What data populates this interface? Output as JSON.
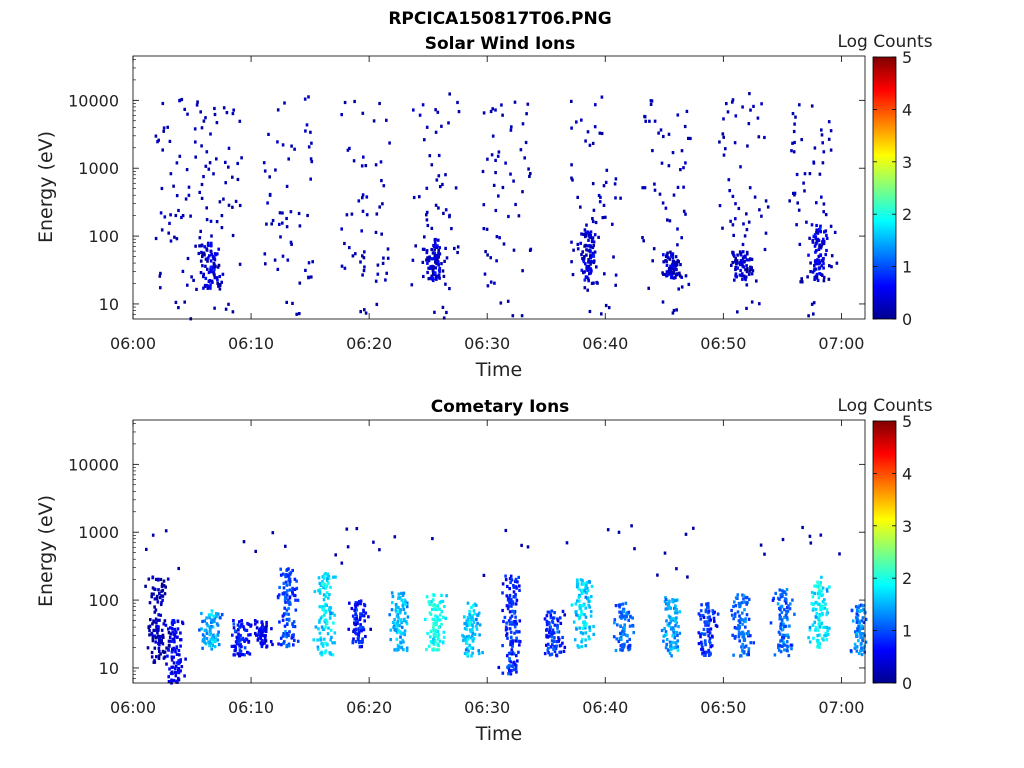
{
  "figure_title": "RPCICA150817T06.PNG",
  "colorbar": {
    "label": "Log Counts",
    "ticks": [
      "0",
      "1",
      "2",
      "3",
      "4",
      "5"
    ],
    "min": 0,
    "max": 5
  },
  "chart_data": [
    {
      "type": "heatmap",
      "title": "Solar Wind Ions",
      "xlabel": "Time",
      "ylabel": "Energy (eV)",
      "x_tick_labels": [
        "06:00",
        "06:10",
        "06:20",
        "06:30",
        "06:40",
        "06:50",
        "07:00"
      ],
      "y_tick_labels": [
        "10",
        "100",
        "1000",
        "10000"
      ],
      "y_scale": "log",
      "ylim": [
        6,
        45000
      ],
      "xlim_minutes": [
        0,
        62
      ],
      "value_label": "Log Counts",
      "sweep_start_minutes": [
        1.7,
        5.0,
        11.0,
        17.5,
        23.5,
        29.5,
        37.0,
        43.0,
        49.5,
        55.5
      ],
      "clusters": [
        {
          "t_minutes": 6.5,
          "e_min": 17,
          "e_max": 80,
          "log_counts": 0.5
        },
        {
          "t_minutes": 25.5,
          "e_min": 22,
          "e_max": 90,
          "log_counts": 0.5
        },
        {
          "t_minutes": 38.5,
          "e_min": 20,
          "e_max": 120,
          "log_counts": 0.5
        },
        {
          "t_minutes": 45.5,
          "e_min": 22,
          "e_max": 60,
          "log_counts": 0.4
        },
        {
          "t_minutes": 51.5,
          "e_min": 22,
          "e_max": 60,
          "log_counts": 0.4
        },
        {
          "t_minutes": 58.0,
          "e_min": 22,
          "e_max": 150,
          "log_counts": 0.5
        }
      ]
    },
    {
      "type": "heatmap",
      "title": "Cometary Ions",
      "xlabel": "Time",
      "ylabel": "Energy (eV)",
      "x_tick_labels": [
        "06:00",
        "06:10",
        "06:20",
        "06:30",
        "06:40",
        "06:50",
        "07:00"
      ],
      "y_tick_labels": [
        "10",
        "100",
        "1000",
        "10000"
      ],
      "y_scale": "log",
      "ylim": [
        6,
        45000
      ],
      "xlim_minutes": [
        0,
        62
      ],
      "value_label": "Log Counts",
      "clusters": [
        {
          "t_minutes": 2.0,
          "e_min": 12,
          "e_max": 220,
          "log_counts": 0.3
        },
        {
          "t_minutes": 3.5,
          "e_min": 6,
          "e_max": 50,
          "log_counts": 0.6
        },
        {
          "t_minutes": 6.5,
          "e_min": 18,
          "e_max": 70,
          "log_counts": 1.5
        },
        {
          "t_minutes": 9.0,
          "e_min": 15,
          "e_max": 50,
          "log_counts": 0.8
        },
        {
          "t_minutes": 10.8,
          "e_min": 20,
          "e_max": 50,
          "log_counts": 0.6
        },
        {
          "t_minutes": 13.0,
          "e_min": 20,
          "e_max": 300,
          "log_counts": 1.0
        },
        {
          "t_minutes": 16.2,
          "e_min": 15,
          "e_max": 250,
          "log_counts": 1.8
        },
        {
          "t_minutes": 19.0,
          "e_min": 20,
          "e_max": 100,
          "log_counts": 0.8
        },
        {
          "t_minutes": 22.5,
          "e_min": 18,
          "e_max": 130,
          "log_counts": 1.6
        },
        {
          "t_minutes": 25.5,
          "e_min": 18,
          "e_max": 120,
          "log_counts": 2.0
        },
        {
          "t_minutes": 28.5,
          "e_min": 15,
          "e_max": 90,
          "log_counts": 1.7
        },
        {
          "t_minutes": 32.0,
          "e_min": 8,
          "e_max": 230,
          "log_counts": 0.9
        },
        {
          "t_minutes": 35.5,
          "e_min": 15,
          "e_max": 70,
          "log_counts": 0.9
        },
        {
          "t_minutes": 38.0,
          "e_min": 20,
          "e_max": 200,
          "log_counts": 1.8
        },
        {
          "t_minutes": 41.5,
          "e_min": 18,
          "e_max": 90,
          "log_counts": 1.2
        },
        {
          "t_minutes": 45.5,
          "e_min": 15,
          "e_max": 110,
          "log_counts": 1.5
        },
        {
          "t_minutes": 48.5,
          "e_min": 15,
          "e_max": 90,
          "log_counts": 0.9
        },
        {
          "t_minutes": 51.5,
          "e_min": 15,
          "e_max": 120,
          "log_counts": 1.2
        },
        {
          "t_minutes": 55.0,
          "e_min": 15,
          "e_max": 150,
          "log_counts": 1.2
        },
        {
          "t_minutes": 58.0,
          "e_min": 20,
          "e_max": 230,
          "log_counts": 1.9
        },
        {
          "t_minutes": 61.5,
          "e_min": 15,
          "e_max": 90,
          "log_counts": 1.3
        }
      ]
    }
  ]
}
